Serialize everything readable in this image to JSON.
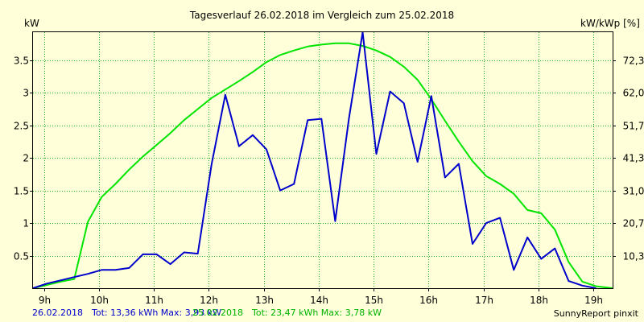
{
  "chart_data": {
    "type": "line",
    "title": "Tagesverlauf 26.02.2018 im Vergleich zum 25.02.2018",
    "ylabel_left": "kW",
    "ylabel_right": "kW/kWp [%]",
    "xlim": [
      8.8,
      19.35
    ],
    "ylim": [
      0,
      3.93
    ],
    "x_ticks": [
      9,
      10,
      11,
      12,
      13,
      14,
      15,
      16,
      17,
      18,
      19
    ],
    "x_tick_labels": [
      "9h",
      "10h",
      "11h",
      "12h",
      "13h",
      "14h",
      "15h",
      "16h",
      "17h",
      "18h",
      "19h"
    ],
    "y_ticks": [
      0.5,
      1,
      1.5,
      2,
      2.5,
      3,
      3.5
    ],
    "y_tick_labels": [
      "0.5",
      "1",
      "1.5",
      "2",
      "2.5",
      "3",
      "3.5"
    ],
    "y2_ticks": [
      0.5,
      1,
      1.5,
      2,
      2.5,
      3,
      3.5
    ],
    "y2_tick_labels": [
      "10,3",
      "20,7",
      "31,0",
      "41,3",
      "51,7",
      "62,0",
      "72,3"
    ],
    "grid": true,
    "series": [
      {
        "name": "26.02.2018",
        "color": "#0000cc",
        "x": [
          8.8,
          9.05,
          9.3,
          9.55,
          9.8,
          10.05,
          10.3,
          10.55,
          10.8,
          11.05,
          11.3,
          11.55,
          11.8,
          12.05,
          12.3,
          12.55,
          12.8,
          13.05,
          13.3,
          13.55,
          13.8,
          14.05,
          14.3,
          14.55,
          14.8,
          15.05,
          15.3,
          15.55,
          15.8,
          16.05,
          16.3,
          16.55,
          16.8,
          17.05,
          17.3,
          17.55,
          17.8,
          18.05,
          18.3,
          18.55,
          18.8,
          19.05
        ],
        "y": [
          0,
          0.07,
          0.12,
          0.17,
          0.22,
          0.28,
          0.28,
          0.31,
          0.52,
          0.52,
          0.37,
          0.55,
          0.53,
          1.9,
          2.97,
          2.18,
          2.35,
          2.13,
          1.5,
          1.6,
          2.58,
          2.6,
          1.03,
          2.6,
          3.93,
          2.06,
          3.02,
          2.84,
          1.94,
          2.95,
          1.7,
          1.91,
          0.68,
          1.0,
          1.08,
          0.28,
          0.78,
          0.45,
          0.61,
          0.11,
          0.04,
          0.0
        ]
      },
      {
        "name": "25.02.2018",
        "color": "#00e400",
        "x": [
          8.8,
          9.05,
          9.3,
          9.55,
          9.8,
          10.05,
          10.3,
          10.55,
          10.8,
          11.05,
          11.3,
          11.55,
          11.8,
          12.05,
          12.3,
          12.55,
          12.8,
          13.05,
          13.3,
          13.55,
          13.8,
          14.05,
          14.3,
          14.55,
          14.8,
          15.05,
          15.3,
          15.55,
          15.8,
          16.05,
          16.3,
          16.55,
          16.8,
          17.05,
          17.3,
          17.55,
          17.8,
          18.05,
          18.3,
          18.55,
          18.8,
          19.05,
          19.35
        ],
        "y": [
          0,
          0.05,
          0.1,
          0.14,
          1.02,
          1.4,
          1.6,
          1.82,
          2.02,
          2.2,
          2.38,
          2.58,
          2.75,
          2.92,
          3.05,
          3.18,
          3.32,
          3.47,
          3.58,
          3.65,
          3.71,
          3.74,
          3.76,
          3.76,
          3.72,
          3.65,
          3.55,
          3.4,
          3.2,
          2.9,
          2.57,
          2.25,
          1.95,
          1.72,
          1.6,
          1.45,
          1.2,
          1.15,
          0.9,
          0.4,
          0.1,
          0.03,
          0
        ]
      }
    ]
  },
  "footer": {
    "left_date": "26.02.2018",
    "left_stats": "Tot: 13,36 kWh Max: 3,93 kW",
    "right_date": "25.02.2018",
    "right_stats": "Tot: 23,47 kWh Max: 3,78 kW",
    "brand": "SunnyReport pinxit"
  }
}
